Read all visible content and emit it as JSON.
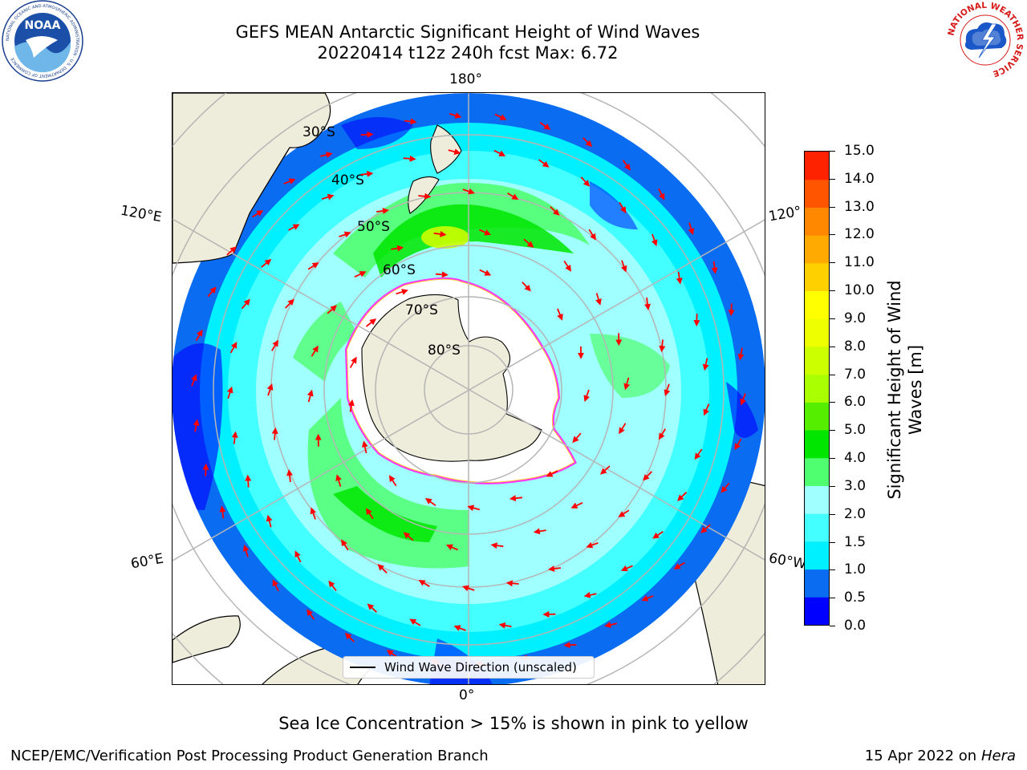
{
  "title": {
    "line1": "GEFS MEAN Antarctic Significant Height of Wind Waves",
    "line2": "20220414 t12z 240h fcst   Max: 6.72"
  },
  "logos": {
    "left_text": "NOAA",
    "left_ring_text": "NATIONAL OCEANIC AND ATMOSPHERIC ADMINISTRATION · U.S. DEPARTMENT OF COMMERCE",
    "right_ring_text": "NATIONAL WEATHER SERVICE"
  },
  "map": {
    "lon_labels": {
      "top": "180°",
      "bottom": "0°",
      "left_upper": "120°E",
      "left_lower": "60°E",
      "right_upper": "120°",
      "right_lower": "60°W"
    },
    "lat_labels": [
      "30°S",
      "40°S",
      "50°S",
      "60°S",
      "70°S",
      "80°S"
    ],
    "legend": "Wind Wave Direction (unscaled)",
    "colors": {
      "land": "#eeecda",
      "ice": "#ffffff",
      "grid": "#b5b5b5",
      "arrow": "#ff0000",
      "ice_edge": [
        "#ff33ff",
        "#ff88ee",
        "#ffcc33"
      ]
    }
  },
  "colorbar": {
    "label": "Significant Height of Wind Waves [m]",
    "ticks": [
      "0.0",
      "0.5",
      "1.0",
      "1.5",
      "2.0",
      "3.0",
      "4.0",
      "5.0",
      "6.0",
      "7.0",
      "8.0",
      "9.0",
      "10.0",
      "11.0",
      "12.0",
      "13.0",
      "14.0",
      "15.0"
    ],
    "colors": [
      "#0000ff",
      "#0a6cf0",
      "#00f0ff",
      "#44ffff",
      "#a0ffff",
      "#50ff70",
      "#00e600",
      "#55ee00",
      "#aaff00",
      "#ccff00",
      "#eeff00",
      "#ffff00",
      "#ffd000",
      "#ffaa00",
      "#ff8800",
      "#ff5500",
      "#ff2200"
    ]
  },
  "caption": "Sea Ice Concentration > 15% is shown in pink to yellow",
  "footer": {
    "left": "NCEP/EMC/Verification Post Processing Product Generation Branch",
    "right_prefix": "15 Apr 2022 on",
    "right_host": "Hera"
  }
}
